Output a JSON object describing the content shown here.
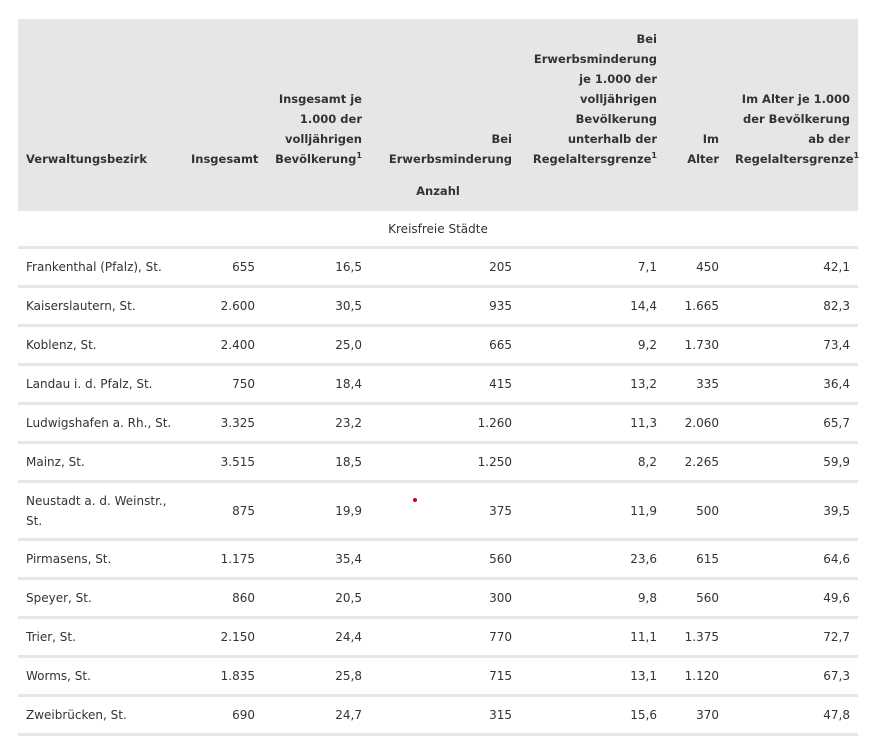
{
  "header": {
    "col_name": "Verwaltungsbezirk",
    "col_total": "Insgesamt",
    "col_total_per_1000": "Insgesamt je 1.000 der volljährigen Bevölkerung",
    "col_reduced": "Bei Erwerbsminderung",
    "col_reduced_per_1000": "Bei Erwerbsminderung je 1.000 der volljährigen Bevölkerung unterhalb der Regelaltersgrenze",
    "col_age": "Im Alter",
    "col_age_per_1000": "Im Alter je 1.000 der Bevölkerung ab der Regelaltersgrenze",
    "footnote_mark": "1",
    "unit_label": "Anzahl"
  },
  "section_title": "Kreisfreie Städte",
  "rows": [
    {
      "name": "Frankenthal (Pfalz), St.",
      "total": "655",
      "total_rate": "16,5",
      "reduced": "205",
      "reduced_rate": "7,1",
      "age": "450",
      "age_rate": "42,1"
    },
    {
      "name": "Kaiserslautern, St.",
      "total": "2.600",
      "total_rate": "30,5",
      "reduced": "935",
      "reduced_rate": "14,4",
      "age": "1.665",
      "age_rate": "82,3"
    },
    {
      "name": "Koblenz, St.",
      "total": "2.400",
      "total_rate": "25,0",
      "reduced": "665",
      "reduced_rate": "9,2",
      "age": "1.730",
      "age_rate": "73,4"
    },
    {
      "name": "Landau i. d. Pfalz, St.",
      "total": "750",
      "total_rate": "18,4",
      "reduced": "415",
      "reduced_rate": "13,2",
      "age": "335",
      "age_rate": "36,4"
    },
    {
      "name": "Ludwigshafen a. Rh., St.",
      "total": "3.325",
      "total_rate": "23,2",
      "reduced": "1.260",
      "reduced_rate": "11,3",
      "age": "2.060",
      "age_rate": "65,7"
    },
    {
      "name": "Mainz, St.",
      "total": "3.515",
      "total_rate": "18,5",
      "reduced": "1.250",
      "reduced_rate": "8,2",
      "age": "2.265",
      "age_rate": "59,9"
    },
    {
      "name": "Neustadt a. d. Weinstr., St.",
      "total": "875",
      "total_rate": "19,9",
      "reduced": "375",
      "reduced_rate": "11,9",
      "age": "500",
      "age_rate": "39,5"
    },
    {
      "name": "Pirmasens, St.",
      "total": "1.175",
      "total_rate": "35,4",
      "reduced": "560",
      "reduced_rate": "23,6",
      "age": "615",
      "age_rate": "64,6"
    },
    {
      "name": "Speyer, St.",
      "total": "860",
      "total_rate": "20,5",
      "reduced": "300",
      "reduced_rate": "9,8",
      "age": "560",
      "age_rate": "49,6"
    },
    {
      "name": "Trier, St.",
      "total": "2.150",
      "total_rate": "24,4",
      "reduced": "770",
      "reduced_rate": "11,1",
      "age": "1.375",
      "age_rate": "72,7"
    },
    {
      "name": "Worms, St.",
      "total": "1.835",
      "total_rate": "25,8",
      "reduced": "715",
      "reduced_rate": "13,1",
      "age": "1.120",
      "age_rate": "67,3"
    },
    {
      "name": "Zweibrücken, St.",
      "total": "690",
      "total_rate": "24,7",
      "reduced": "315",
      "reduced_rate": "15,6",
      "age": "370",
      "age_rate": "47,8"
    }
  ]
}
